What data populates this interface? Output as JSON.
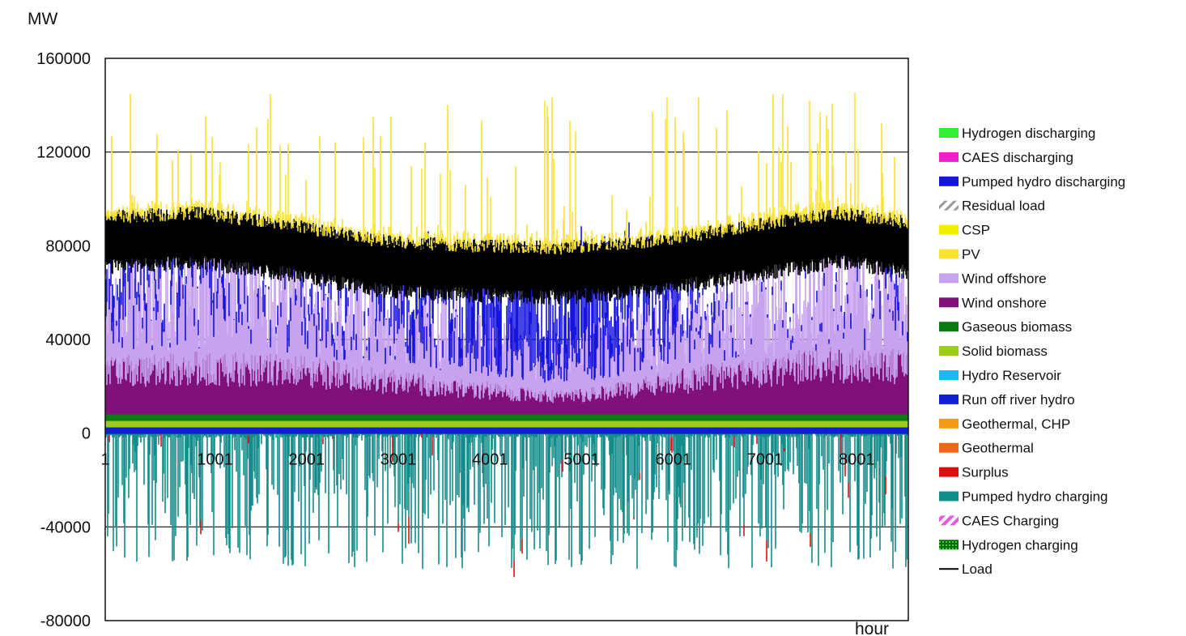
{
  "chart_data": {
    "type": "area",
    "ylabel": "MW",
    "xlabel": "hour",
    "ylim": [
      -80000,
      160000
    ],
    "xlim": [
      1,
      8760
    ],
    "y_ticks": [
      "160000",
      "120000",
      "80000",
      "40000",
      "0",
      "-40000",
      "-80000"
    ],
    "y_tick_values": [
      160000,
      120000,
      80000,
      40000,
      0,
      -40000,
      -80000
    ],
    "x_ticks": [
      "1",
      "1001",
      "2001",
      "3001",
      "4001",
      "5001",
      "6001",
      "7001",
      "8001"
    ],
    "x_tick_values": [
      1,
      1001,
      2001,
      3001,
      4001,
      5001,
      6001,
      7001,
      8001
    ],
    "grid": true,
    "legend_position": "right",
    "series": [
      {
        "name": "Hydrogen discharging",
        "color": "#33ee33",
        "style": "solid"
      },
      {
        "name": "CAES discharging",
        "color": "#ee22cc",
        "style": "solid"
      },
      {
        "name": "Pumped hydro discharging",
        "color": "#1515dd",
        "style": "solid"
      },
      {
        "name": "Residual load",
        "color": "#aaaaaa",
        "style": "hatch-gray"
      },
      {
        "name": "CSP",
        "color": "#f2ee00",
        "style": "solid"
      },
      {
        "name": "PV",
        "color": "#fae232",
        "style": "solid"
      },
      {
        "name": "Wind offshore",
        "color": "#c7a2ee",
        "style": "solid"
      },
      {
        "name": "Wind onshore",
        "color": "#80107a",
        "style": "solid"
      },
      {
        "name": "Gaseous biomass",
        "color": "#0b7a12",
        "style": "solid"
      },
      {
        "name": "Solid biomass",
        "color": "#9ccc18",
        "style": "solid"
      },
      {
        "name": "Hydro Reservoir",
        "color": "#21b8ee",
        "style": "solid"
      },
      {
        "name": "Run off river hydro",
        "color": "#1020d0",
        "style": "solid"
      },
      {
        "name": "Geothermal, CHP",
        "color": "#f3991c",
        "style": "solid"
      },
      {
        "name": "Geothermal",
        "color": "#ee6618",
        "style": "solid"
      },
      {
        "name": "Surplus",
        "color": "#dd1111",
        "style": "solid"
      },
      {
        "name": "Pumped hydro charging",
        "color": "#138c8c",
        "style": "solid"
      },
      {
        "name": "CAES Charging",
        "color": "#ee66dd",
        "style": "hatch-pink"
      },
      {
        "name": "Hydrogen charging",
        "color": "#22aa22",
        "style": "dots-green"
      },
      {
        "name": "Load",
        "color": "#000000",
        "style": "line"
      }
    ],
    "profiles": {
      "load_band_center_by_x": [
        [
          1,
          82000
        ],
        [
          1001,
          84000
        ],
        [
          2001,
          79000
        ],
        [
          3001,
          72000
        ],
        [
          4001,
          70000
        ],
        [
          5001,
          69000
        ],
        [
          6001,
          72000
        ],
        [
          7001,
          78000
        ],
        [
          8001,
          84000
        ],
        [
          8760,
          80000
        ]
      ],
      "load_band_halfwidth": 13000,
      "wind_offshore_top_by_x": [
        [
          1,
          58000
        ],
        [
          1001,
          62000
        ],
        [
          2001,
          55000
        ],
        [
          3001,
          48000
        ],
        [
          4001,
          38000
        ],
        [
          5001,
          28000
        ],
        [
          6001,
          40000
        ],
        [
          7001,
          52000
        ],
        [
          8001,
          60000
        ],
        [
          8760,
          56000
        ]
      ],
      "wind_onshore_top_by_x": [
        [
          1,
          20000
        ],
        [
          1001,
          22000
        ],
        [
          2001,
          21000
        ],
        [
          3001,
          16000
        ],
        [
          4001,
          12000
        ],
        [
          5001,
          8000
        ],
        [
          6001,
          14000
        ],
        [
          7001,
          20000
        ],
        [
          8001,
          24000
        ],
        [
          8760,
          22000
        ]
      ],
      "pumped_discharge_max_by_x": [
        [
          1,
          30000
        ],
        [
          1001,
          35000
        ],
        [
          2001,
          20000
        ],
        [
          3001,
          28000
        ],
        [
          4001,
          45000
        ],
        [
          5001,
          60000
        ],
        [
          6001,
          40000
        ],
        [
          7001,
          12000
        ],
        [
          8001,
          15000
        ],
        [
          8760,
          25000
        ]
      ],
      "pumped_charging_min": -65000,
      "solar_peak_max": 146000
    }
  }
}
